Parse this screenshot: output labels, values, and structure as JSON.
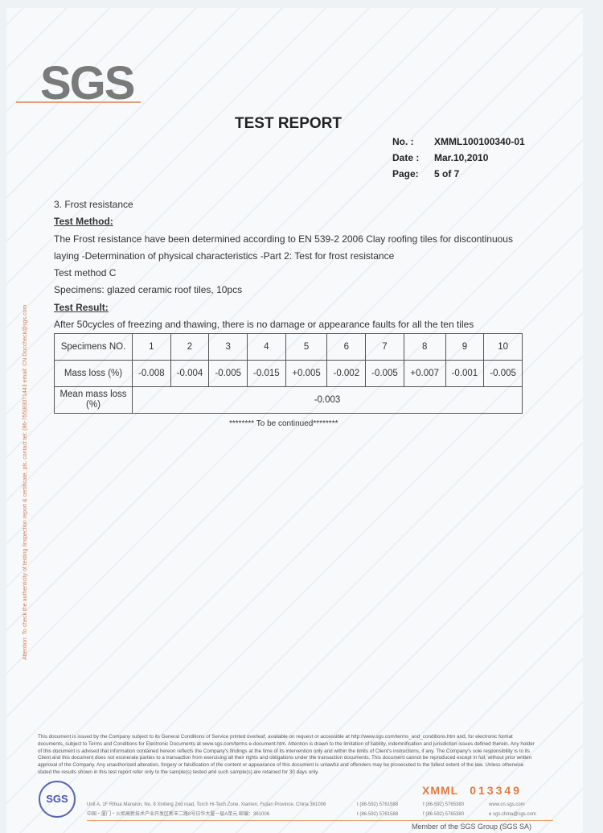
{
  "logo": "SGS",
  "title": "TEST REPORT",
  "meta": {
    "no_label": "No. :",
    "no": "XMML100100340-01",
    "date_label": "Date :",
    "date": "Mar.10,2010",
    "page_label": "Page:",
    "page": "5 of 7"
  },
  "side_note": "Attention: To check the authenticity of testing /inspection report & certificate, pls. contact tel: (86-755)83071443 email: CN.Doccheck@sgs.com",
  "section": "3. Frost resistance",
  "method_heading": "Test Method:",
  "method_text": "The Frost resistance have been determined according to EN 539-2 2006 Clay roofing tiles for discontinuous laying -Determination of physical characteristics -Part 2: Test for frost resistance",
  "method_c": "Test method C",
  "specimens": "Specimens: glazed ceramic roof tiles, 10pcs",
  "result_heading": "Test Result:",
  "result_text": "After 50cycles of freezing and thawing, there is no damage or appearance faults for all the ten tiles",
  "table": {
    "header_label": "Specimens NO.",
    "specimens": [
      "1",
      "2",
      "3",
      "4",
      "5",
      "6",
      "7",
      "8",
      "9",
      "10"
    ],
    "mass_label": "Mass loss (%)",
    "mass": [
      "-0.008",
      "-0.004",
      "-0.005",
      "-0.015",
      "+0.005",
      "-0.002",
      "-0.005",
      "+0.007",
      "-0.001",
      "-0.005"
    ],
    "mean_label": "Mean mass loss (%)",
    "mean": "-0.003"
  },
  "continued": "******** To be continued********",
  "disclaimer": "This document is issued by the Company subject to its General Conditions of Service printed overleaf, available on request or accessible at http://www.sgs.com/terms_and_conditions.htm and, for electronic format documents, subject to Terms and Conditions for Electronic Documents at www.sgs.com/terms e-document.htm. Attention is drawn to the limitation of liability, indemnification and jurisdiction issues defined therein. Any holder of this document is advised that information contained hereon reflects the Company's findings at the time of its intervention only and within the limits of Client's instructions, if any. The Company's sole responsibility is to its Client and this document does not exonerate parties to a transaction from exercising all their rights and obligations under the transaction documents. This document cannot be reproduced except in full, without prior written approval of the Company. Any unauthorized alteration, forgery or falsification of the content or appearance of this document is unlawful and offenders may be prosecuted to the fullest extent of the law. Unless otherwise stated the results shown in this test report refer only to the sample(s) tested and such sample(s) are retained for 30 days only.",
  "stamp": "SGS",
  "serial": {
    "prefix": "XMML",
    "number": "013349"
  },
  "footer": {
    "address_en": "Unit A, 1F Rihua Mansion, No. 8 Xinfeng 2nd road, Torch Hi-Tech Zone, Xiamen, Fujian Province, China 361006",
    "address_cn": "中国・厦门・火炬高新技术产业开发区新丰二路8号日华大厦一层A单元  邮编：361006",
    "tel": "t (86-592) 5761588",
    "fax": "f (86-592) 5765380",
    "web": "www.cn.sgs.com",
    "email": "e sgs.china@sgs.com",
    "member": "Member of the SGS Group (SGS SA)"
  }
}
